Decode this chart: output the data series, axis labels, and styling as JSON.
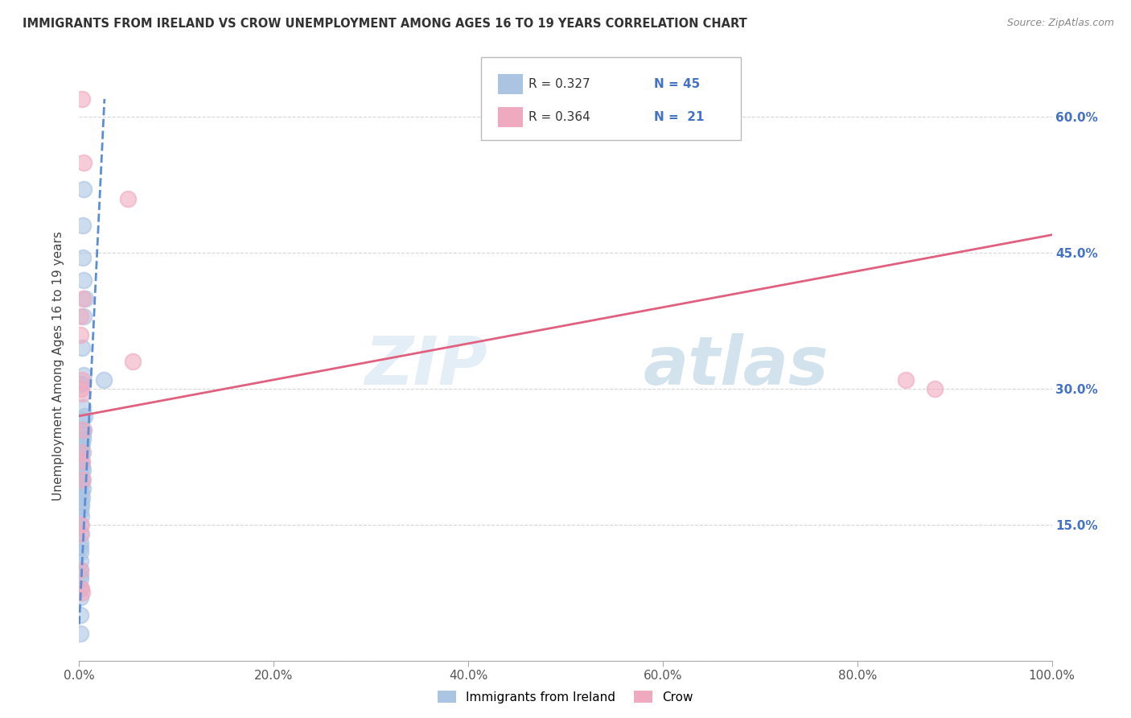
{
  "title": "IMMIGRANTS FROM IRELAND VS CROW UNEMPLOYMENT AMONG AGES 16 TO 19 YEARS CORRELATION CHART",
  "source": "Source: ZipAtlas.com",
  "ylabel": "Unemployment Among Ages 16 to 19 years",
  "x_ticks": [
    0.0,
    20.0,
    40.0,
    60.0,
    80.0,
    100.0
  ],
  "x_tick_labels": [
    "0.0%",
    "20.0%",
    "40.0%",
    "60.0%",
    "80.0%",
    "100.0%"
  ],
  "y_ticks": [
    0.0,
    15.0,
    30.0,
    45.0,
    60.0
  ],
  "y_tick_labels": [
    "",
    "15.0%",
    "30.0%",
    "45.0%",
    "60.0%"
  ],
  "legend_label_blue": "Immigrants from Ireland",
  "legend_label_pink": "Crow",
  "legend_R_blue": "R = 0.327",
  "legend_N_blue": "N = 45",
  "legend_R_pink": "R = 0.364",
  "legend_N_pink": "N =  21",
  "blue_color": "#aac4e2",
  "pink_color": "#f0aac0",
  "blue_line_color": "#5b8ed4",
  "pink_line_color": "#e06080",
  "watermark_zip": "ZIP",
  "watermark_atlas": "atlas",
  "blue_scatter_x": [
    0.5,
    0.4,
    0.35,
    0.5,
    0.6,
    0.45,
    0.3,
    0.5,
    0.25,
    0.4,
    0.55,
    0.3,
    0.45,
    0.4,
    0.35,
    0.3,
    0.25,
    0.4,
    0.2,
    0.3,
    0.35,
    0.25,
    0.3,
    0.2,
    0.35,
    0.25,
    0.3,
    0.2,
    0.25,
    0.15,
    0.2,
    0.15,
    0.2,
    0.15,
    0.15,
    0.1,
    0.15,
    0.1,
    0.15,
    0.1,
    0.1,
    0.1,
    2.5,
    0.1,
    0.1
  ],
  "blue_scatter_y": [
    52.0,
    48.0,
    44.5,
    42.0,
    40.0,
    38.0,
    34.5,
    31.5,
    30.5,
    28.0,
    27.0,
    26.5,
    25.5,
    25.0,
    24.5,
    24.0,
    23.5,
    23.0,
    22.0,
    21.5,
    21.0,
    20.5,
    20.0,
    19.5,
    19.0,
    18.5,
    18.0,
    17.5,
    17.0,
    16.5,
    16.0,
    15.0,
    14.0,
    13.0,
    12.5,
    12.0,
    11.0,
    10.0,
    9.5,
    9.0,
    8.0,
    7.0,
    31.0,
    5.0,
    3.0
  ],
  "pink_scatter_x": [
    0.3,
    0.5,
    5.0,
    5.5,
    0.4,
    0.3,
    0.2,
    0.3,
    0.4,
    0.2,
    0.3,
    0.2,
    0.1,
    0.1,
    85.0,
    88.0,
    0.1,
    0.1,
    0.2,
    0.3,
    0.4
  ],
  "pink_scatter_y": [
    62.0,
    55.0,
    51.0,
    33.0,
    40.0,
    31.0,
    30.0,
    29.5,
    25.5,
    23.0,
    22.0,
    15.0,
    14.0,
    10.0,
    31.0,
    30.0,
    36.0,
    38.0,
    8.0,
    7.5,
    20.0
  ],
  "blue_line_x": [
    0.0,
    2.6
  ],
  "blue_line_y": [
    4.0,
    62.0
  ],
  "pink_line_x": [
    0.0,
    100.0
  ],
  "pink_line_y": [
    27.0,
    47.0
  ],
  "xlim": [
    0.0,
    100.0
  ],
  "ylim": [
    0.0,
    65.0
  ],
  "figsize": [
    14.06,
    8.92
  ],
  "dpi": 100
}
